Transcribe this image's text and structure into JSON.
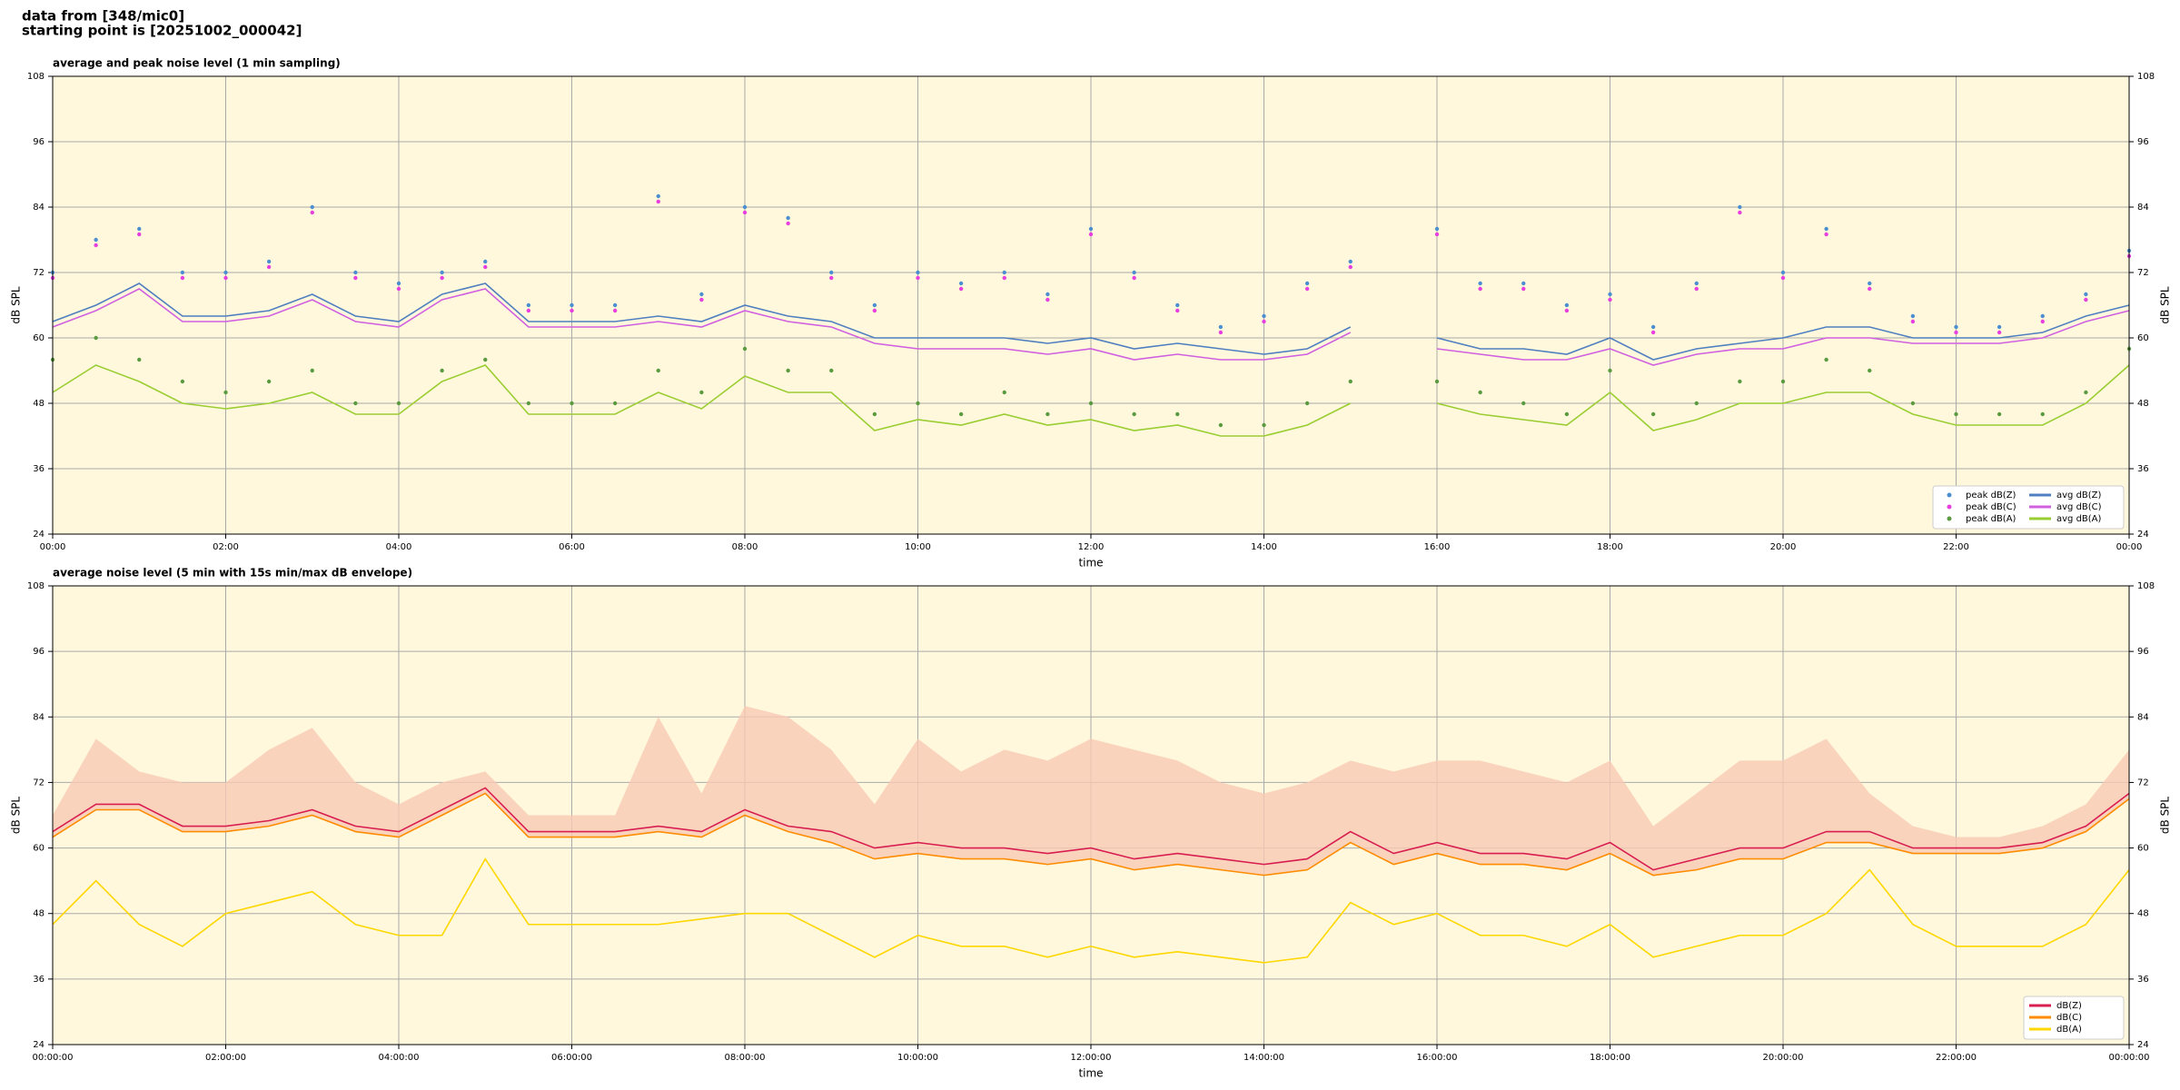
{
  "header": {
    "lines": [
      "data from [348/mic0]",
      "starting point is [20251002_000042]"
    ]
  },
  "chart_data": [
    {
      "type": "line",
      "title": "average and peak noise level (1 min sampling)",
      "xlabel": "time",
      "ylabel": "dB SPL",
      "legend": "lower right",
      "legend_columns": 2,
      "grid": true,
      "background": "#fff8dc",
      "xlim": [
        0,
        24
      ],
      "ylim": [
        24,
        108
      ],
      "xticks": [
        {
          "value": 0,
          "label": "00:00"
        },
        {
          "value": 2,
          "label": "02:00"
        },
        {
          "value": 4,
          "label": "04:00"
        },
        {
          "value": 6,
          "label": "06:00"
        },
        {
          "value": 8,
          "label": "08:00"
        },
        {
          "value": 10,
          "label": "10:00"
        },
        {
          "value": 12,
          "label": "12:00"
        },
        {
          "value": 14,
          "label": "14:00"
        },
        {
          "value": 16,
          "label": "16:00"
        },
        {
          "value": 18,
          "label": "18:00"
        },
        {
          "value": 20,
          "label": "20:00"
        },
        {
          "value": 22,
          "label": "22:00"
        },
        {
          "value": 24,
          "label": "00:00"
        }
      ],
      "yticks": [
        24,
        36,
        48,
        60,
        72,
        84,
        96,
        108
      ],
      "x": [
        0,
        0.5,
        1,
        1.5,
        2,
        2.5,
        3,
        3.5,
        4,
        4.5,
        5,
        5.5,
        6,
        6.5,
        7,
        7.5,
        8,
        8.5,
        9,
        9.5,
        10,
        10.5,
        11,
        11.5,
        12,
        12.5,
        13,
        13.5,
        14,
        14.5,
        15,
        15.5,
        16,
        16.5,
        17,
        17.5,
        18,
        18.5,
        19,
        19.5,
        20,
        20.5,
        21,
        21.5,
        22,
        22.5,
        23,
        23.5,
        24
      ],
      "series": [
        {
          "name": "peak dB(Z)",
          "style": "scatter",
          "color": "#4c8fd0",
          "values": [
            72,
            78,
            80,
            72,
            72,
            74,
            84,
            72,
            70,
            72,
            74,
            66,
            66,
            66,
            86,
            68,
            84,
            82,
            72,
            66,
            72,
            70,
            72,
            68,
            80,
            72,
            66,
            62,
            64,
            70,
            74,
            null,
            80,
            70,
            70,
            66,
            68,
            62,
            70,
            84,
            72,
            80,
            70,
            64,
            62,
            62,
            64,
            68,
            76
          ]
        },
        {
          "name": "peak dB(C)",
          "style": "scatter",
          "color": "#e83ee0",
          "values": [
            71,
            77,
            79,
            71,
            71,
            73,
            83,
            71,
            69,
            71,
            73,
            65,
            65,
            65,
            85,
            67,
            83,
            81,
            71,
            65,
            71,
            69,
            71,
            67,
            79,
            71,
            65,
            61,
            63,
            69,
            73,
            null,
            79,
            69,
            69,
            65,
            67,
            61,
            69,
            83,
            71,
            79,
            69,
            63,
            61,
            61,
            63,
            67,
            75
          ]
        },
        {
          "name": "peak dB(A)",
          "style": "scatter",
          "color": "#5a9a40",
          "values": [
            56,
            60,
            56,
            52,
            50,
            52,
            54,
            48,
            48,
            54,
            56,
            48,
            48,
            48,
            54,
            50,
            58,
            54,
            54,
            46,
            48,
            46,
            50,
            46,
            48,
            46,
            46,
            44,
            44,
            48,
            52,
            null,
            52,
            50,
            48,
            46,
            54,
            46,
            48,
            52,
            52,
            56,
            54,
            48,
            46,
            46,
            46,
            50,
            58
          ]
        },
        {
          "name": "avg dB(Z)",
          "style": "line",
          "color": "#4f7fc0",
          "values": [
            63,
            66,
            70,
            64,
            64,
            65,
            68,
            64,
            63,
            68,
            70,
            63,
            63,
            63,
            64,
            63,
            66,
            64,
            63,
            60,
            60,
            60,
            60,
            59,
            60,
            58,
            59,
            58,
            57,
            58,
            62,
            null,
            60,
            58,
            58,
            57,
            60,
            56,
            58,
            59,
            60,
            62,
            62,
            60,
            60,
            60,
            61,
            64,
            66
          ]
        },
        {
          "name": "avg dB(C)",
          "style": "line",
          "color": "#d060e0",
          "values": [
            62,
            65,
            69,
            63,
            63,
            64,
            67,
            63,
            62,
            67,
            69,
            62,
            62,
            62,
            63,
            62,
            65,
            63,
            62,
            59,
            58,
            58,
            58,
            57,
            58,
            56,
            57,
            56,
            56,
            57,
            61,
            null,
            58,
            57,
            56,
            56,
            58,
            55,
            57,
            58,
            58,
            60,
            60,
            59,
            59,
            59,
            60,
            63,
            65
          ]
        },
        {
          "name": "avg dB(A)",
          "style": "line",
          "color": "#9acd32",
          "values": [
            50,
            55,
            52,
            48,
            47,
            48,
            50,
            46,
            46,
            52,
            55,
            46,
            46,
            46,
            50,
            47,
            53,
            50,
            50,
            43,
            45,
            44,
            46,
            44,
            45,
            43,
            44,
            42,
            42,
            44,
            48,
            null,
            48,
            46,
            45,
            44,
            50,
            43,
            45,
            48,
            48,
            50,
            50,
            46,
            44,
            44,
            44,
            48,
            55
          ]
        }
      ]
    },
    {
      "type": "line",
      "title": "average noise level (5 min with 15s min/max dB envelope)",
      "xlabel": "time",
      "ylabel": "dB SPL",
      "legend": "lower right",
      "legend_columns": 1,
      "grid": true,
      "background": "#fff8dc",
      "xlim": [
        0,
        24
      ],
      "ylim": [
        24,
        108
      ],
      "xticks": [
        {
          "value": 0,
          "label": "00:00:00"
        },
        {
          "value": 2,
          "label": "02:00:00"
        },
        {
          "value": 4,
          "label": "04:00:00"
        },
        {
          "value": 6,
          "label": "06:00:00"
        },
        {
          "value": 8,
          "label": "08:00:00"
        },
        {
          "value": 10,
          "label": "10:00:00"
        },
        {
          "value": 12,
          "label": "12:00:00"
        },
        {
          "value": 14,
          "label": "14:00:00"
        },
        {
          "value": 16,
          "label": "16:00:00"
        },
        {
          "value": 18,
          "label": "18:00:00"
        },
        {
          "value": 20,
          "label": "20:00:00"
        },
        {
          "value": 22,
          "label": "22:00:00"
        },
        {
          "value": 24,
          "label": "00:00:00"
        }
      ],
      "yticks": [
        24,
        36,
        48,
        60,
        72,
        84,
        96,
        108
      ],
      "x": [
        0,
        0.5,
        1,
        1.5,
        2,
        2.5,
        3,
        3.5,
        4,
        4.5,
        5,
        5.5,
        6,
        6.5,
        7,
        7.5,
        8,
        8.5,
        9,
        9.5,
        10,
        10.5,
        11,
        11.5,
        12,
        12.5,
        13,
        13.5,
        14,
        14.5,
        15,
        15.5,
        16,
        16.5,
        17,
        17.5,
        18,
        18.5,
        19,
        19.5,
        20,
        20.5,
        21,
        21.5,
        22,
        22.5,
        23,
        23.5,
        24
      ],
      "envelope": {
        "color": "#f9c9b4",
        "values": [
          66,
          80,
          74,
          72,
          72,
          78,
          82,
          72,
          68,
          72,
          74,
          66,
          66,
          66,
          84,
          70,
          86,
          84,
          78,
          68,
          80,
          74,
          78,
          76,
          80,
          78,
          76,
          72,
          70,
          72,
          76,
          74,
          76,
          76,
          74,
          72,
          76,
          64,
          70,
          76,
          76,
          80,
          70,
          64,
          62,
          62,
          64,
          68,
          78
        ]
      },
      "series": [
        {
          "name": "dB(Z)",
          "style": "line",
          "color": "#d81e50",
          "values": [
            63,
            68,
            68,
            64,
            64,
            65,
            67,
            64,
            63,
            67,
            71,
            63,
            63,
            63,
            64,
            63,
            67,
            64,
            63,
            60,
            61,
            60,
            60,
            59,
            60,
            58,
            59,
            58,
            57,
            58,
            63,
            59,
            61,
            59,
            59,
            58,
            61,
            56,
            58,
            60,
            60,
            63,
            63,
            60,
            60,
            60,
            61,
            64,
            70
          ]
        },
        {
          "name": "dB(C)",
          "style": "line",
          "color": "#ff8c00",
          "values": [
            62,
            67,
            67,
            63,
            63,
            64,
            66,
            63,
            62,
            66,
            70,
            62,
            62,
            62,
            63,
            62,
            66,
            63,
            61,
            58,
            59,
            58,
            58,
            57,
            58,
            56,
            57,
            56,
            55,
            56,
            61,
            57,
            59,
            57,
            57,
            56,
            59,
            55,
            56,
            58,
            58,
            61,
            61,
            59,
            59,
            59,
            60,
            63,
            69
          ]
        },
        {
          "name": "dB(A)",
          "style": "line",
          "color": "#ffd700",
          "values": [
            46,
            54,
            46,
            42,
            48,
            50,
            52,
            46,
            44,
            44,
            58,
            46,
            46,
            46,
            46,
            47,
            48,
            48,
            44,
            40,
            44,
            42,
            42,
            40,
            42,
            40,
            41,
            40,
            39,
            40,
            50,
            46,
            48,
            44,
            44,
            42,
            46,
            40,
            42,
            44,
            44,
            48,
            56,
            46,
            42,
            42,
            42,
            46,
            56
          ]
        }
      ]
    }
  ]
}
